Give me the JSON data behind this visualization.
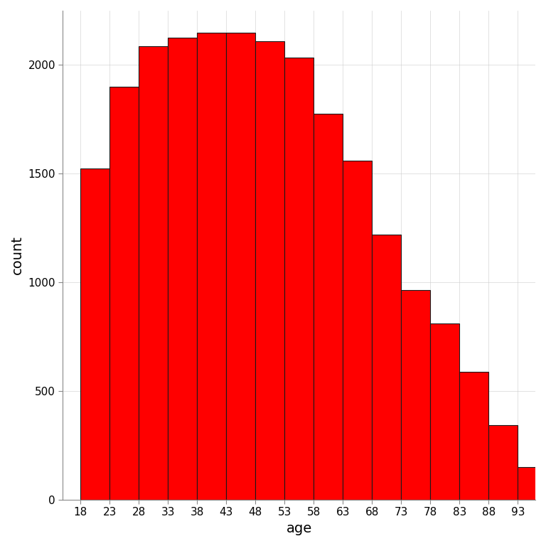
{
  "bin_edges": [
    18,
    23,
    28,
    33,
    38,
    43,
    48,
    53,
    58,
    63,
    68,
    73,
    78,
    83,
    88,
    93,
    98
  ],
  "counts": [
    1525,
    1900,
    2085,
    2125,
    2150,
    2150,
    2110,
    2035,
    1775,
    1560,
    1220,
    965,
    810,
    590,
    345,
    150
  ],
  "bar_color": "#FF0000",
  "bar_edge_color": "#1a1a1a",
  "bar_edge_width": 0.8,
  "xlabel": "age",
  "ylabel": "count",
  "xlabel_fontsize": 14,
  "ylabel_fontsize": 14,
  "tick_fontsize": 11,
  "xlim": [
    15,
    96
  ],
  "ylim": [
    0,
    2250
  ],
  "yticks": [
    0,
    500,
    1000,
    1500,
    2000
  ],
  "xticks": [
    18,
    23,
    28,
    33,
    38,
    43,
    48,
    53,
    58,
    63,
    68,
    73,
    78,
    83,
    88,
    93
  ],
  "background_color": "#ffffff",
  "grid_color": "#cccccc",
  "grid_alpha": 0.8,
  "grid_linewidth": 0.5
}
